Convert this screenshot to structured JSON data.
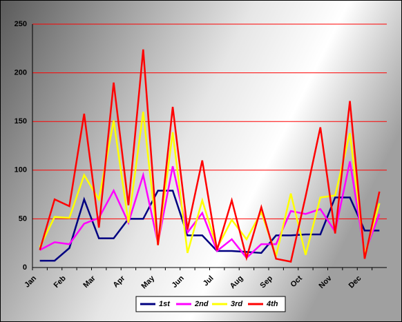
{
  "chart_data": {
    "type": "line",
    "categories": [
      "Jan",
      null,
      "Feb",
      null,
      "Mar",
      null,
      "Apr",
      null,
      "May",
      null,
      "Jun",
      null,
      "Jul",
      null,
      "Aug",
      null,
      "Sep",
      null,
      "Oct",
      null,
      "Nov",
      null,
      "Dec",
      null
    ],
    "series": [
      {
        "name": "1st",
        "color": "#000080",
        "values": [
          7,
          7,
          20,
          70,
          30,
          30,
          50,
          50,
          79,
          79,
          33,
          33,
          17,
          17,
          16,
          15,
          33,
          33,
          34,
          34,
          72,
          72,
          38,
          38
        ]
      },
      {
        "name": "2nd",
        "color": "#ff00ff",
        "values": [
          18,
          26,
          24,
          45,
          51,
          79,
          46,
          95,
          25,
          104,
          36,
          56,
          17,
          29,
          10,
          24,
          24,
          58,
          55,
          60,
          37,
          109,
          15,
          55
        ]
      },
      {
        "name": "3rd",
        "color": "#ffff00",
        "values": [
          21,
          52,
          51,
          95,
          70,
          151,
          46,
          160,
          23,
          139,
          15,
          69,
          20,
          49,
          29,
          57,
          12,
          76,
          13,
          72,
          74,
          138,
          13,
          66
        ]
      },
      {
        "name": "4th",
        "color": "#ff0000",
        "values": [
          18,
          70,
          63,
          158,
          41,
          190,
          64,
          224,
          23,
          165,
          39,
          110,
          18,
          69,
          10,
          62,
          9,
          6,
          73,
          144,
          35,
          171,
          9,
          78
        ]
      }
    ],
    "ylim": [
      0,
      250
    ],
    "yticks": [
      0,
      50,
      100,
      150,
      200,
      250
    ],
    "grid": true,
    "grid_color": "#ff0000",
    "legend": "bottom"
  }
}
